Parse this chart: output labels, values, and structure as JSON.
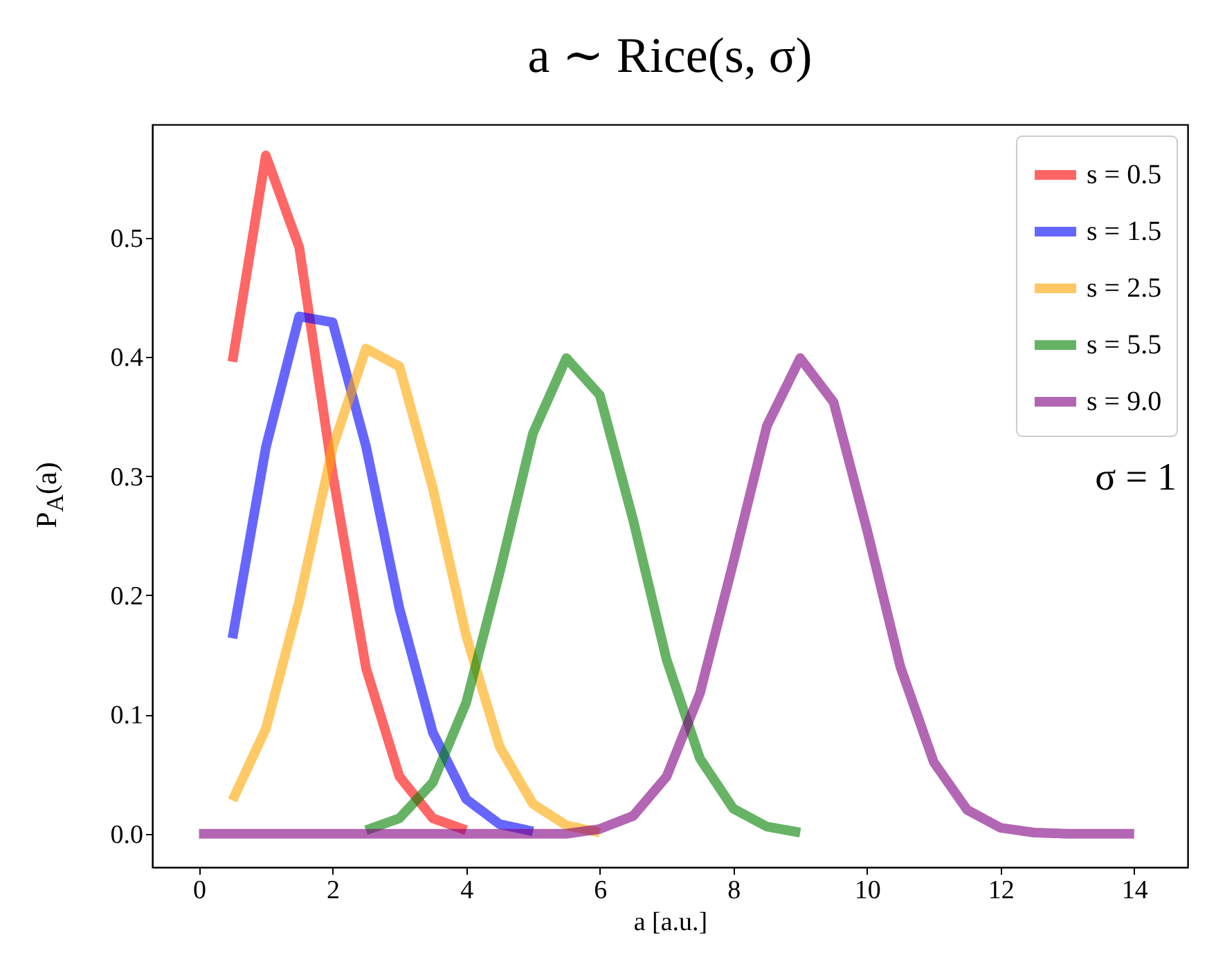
{
  "chart_data": {
    "type": "line",
    "title": "a ∼ Rice(s, σ)",
    "xlabel": "a [a.u.]",
    "ylabel": "P$_{A}$(a)",
    "x": [
      0,
      0.5,
      1,
      1.5,
      2,
      2.5,
      3,
      3.5,
      4,
      4.5,
      5,
      5.5,
      6,
      6.5,
      7,
      7.5,
      8,
      8.5,
      9,
      9.5,
      10,
      10.5,
      11,
      11.5,
      12,
      12.5,
      13,
      13.5,
      14
    ],
    "series": [
      {
        "name": "s = 0.5",
        "color": "#ff0000",
        "values": [
          null,
          0.396,
          0.569,
          0.492,
          0.302,
          0.139,
          0.048,
          0.013,
          0.003,
          null,
          null,
          null,
          null,
          null,
          null,
          null,
          null,
          null,
          null,
          null,
          null,
          null,
          null,
          null,
          null,
          null,
          null,
          null,
          null
        ]
      },
      {
        "name": "s = 1.5",
        "color": "#0000ff",
        "values": [
          null,
          0.164,
          0.324,
          0.434,
          0.429,
          0.325,
          0.189,
          0.085,
          0.029,
          0.008,
          0.002,
          null,
          null,
          null,
          null,
          null,
          null,
          null,
          null,
          null,
          null,
          null,
          null,
          null,
          null,
          null,
          null,
          null,
          null
        ]
      },
      {
        "name": "s = 2.5",
        "color": "#ffa500",
        "values": [
          null,
          0.028,
          0.088,
          0.195,
          0.324,
          0.407,
          0.392,
          0.29,
          0.166,
          0.073,
          0.025,
          0.007,
          0.001,
          null,
          null,
          null,
          null,
          null,
          null,
          null,
          null,
          null,
          null,
          null,
          null,
          null,
          null,
          null,
          null
        ]
      },
      {
        "name": "s = 5.5",
        "color": "#008000",
        "values": [
          null,
          null,
          null,
          null,
          null,
          0.003,
          0.013,
          0.043,
          0.11,
          0.219,
          0.336,
          0.399,
          0.368,
          0.263,
          0.146,
          0.063,
          0.021,
          0.006,
          0.001,
          null,
          null,
          null,
          null,
          null,
          null,
          null,
          null,
          null,
          null
        ]
      },
      {
        "name": "s = 9.0",
        "color": "#800080",
        "values": [
          0,
          0,
          0,
          0,
          0,
          0,
          0,
          0,
          0,
          0,
          0,
          0,
          0.004,
          0.015,
          0.048,
          0.118,
          0.228,
          0.342,
          0.399,
          0.362,
          0.255,
          0.14,
          0.06,
          0.02,
          0.005,
          0.001,
          0,
          0,
          0
        ]
      }
    ],
    "xlim": [
      -0.7,
      14.8
    ],
    "xticks": [
      0,
      2,
      4,
      6,
      8,
      10,
      12,
      14
    ],
    "ylim": [
      -0.028,
      0.595
    ],
    "yticks": [
      {
        "value": 0,
        "label": "0.0"
      },
      0.1,
      0.2,
      0.3,
      0.4,
      0.5
    ],
    "grid": false,
    "legend": "top right",
    "marker": "none",
    "line_style": "solid",
    "annotations": [
      "σ = 1"
    ]
  }
}
